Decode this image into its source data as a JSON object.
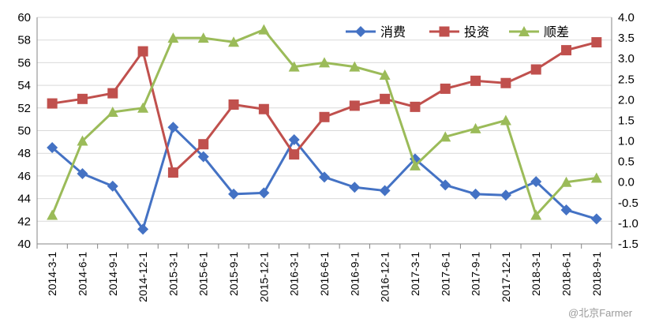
{
  "chart_data": {
    "type": "line",
    "categories": [
      "2014-3-1",
      "2014-6-1",
      "2014-9-1",
      "2014-12-1",
      "2015-3-1",
      "2015-6-1",
      "2015-9-1",
      "2015-12-1",
      "2016-3-1",
      "2016-6-1",
      "2016-9-1",
      "2016-12-1",
      "2017-3-1",
      "2017-6-1",
      "2017-9-1",
      "2017-12-1",
      "2018-3-1",
      "2018-6-1",
      "2018-9-1"
    ],
    "series": [
      {
        "name": "消费",
        "axis": "left",
        "color": "#4472c4",
        "marker": "diamond",
        "values": [
          48.5,
          46.2,
          45.1,
          41.3,
          50.3,
          47.7,
          44.4,
          44.5,
          49.2,
          45.9,
          45.0,
          44.7,
          47.5,
          45.2,
          44.4,
          44.3,
          45.5,
          43.0,
          42.2
        ]
      },
      {
        "name": "投资",
        "axis": "left",
        "color": "#c0504d",
        "marker": "square",
        "values": [
          52.4,
          52.8,
          53.3,
          57.0,
          46.3,
          48.8,
          52.3,
          51.9,
          47.9,
          51.2,
          52.2,
          52.8,
          52.1,
          53.7,
          54.4,
          54.2,
          55.4,
          57.1,
          57.8
        ]
      },
      {
        "name": "顺差",
        "axis": "right",
        "color": "#9bbb59",
        "marker": "triangle",
        "values": [
          -0.8,
          1.0,
          1.7,
          1.8,
          3.5,
          3.5,
          3.4,
          3.7,
          2.8,
          2.9,
          2.8,
          2.6,
          0.4,
          1.1,
          1.3,
          1.5,
          -0.8,
          0.0,
          0.1
        ]
      }
    ],
    "y_left": {
      "ticks": [
        "60",
        "58",
        "56",
        "54",
        "52",
        "50",
        "48",
        "46",
        "44",
        "42",
        "40"
      ],
      "min": 40,
      "max": 60
    },
    "y_right": {
      "ticks": [
        "4.0",
        "3.5",
        "3.0",
        "2.5",
        "2.0",
        "1.5",
        "1.0",
        "0.5",
        "0.0",
        "-0.5",
        "-1.0",
        "-1.5"
      ],
      "min": -1.5,
      "max": 4.0
    },
    "grid": "horizontal",
    "legend_position": "top-right"
  },
  "watermark": "@北京Farmer"
}
